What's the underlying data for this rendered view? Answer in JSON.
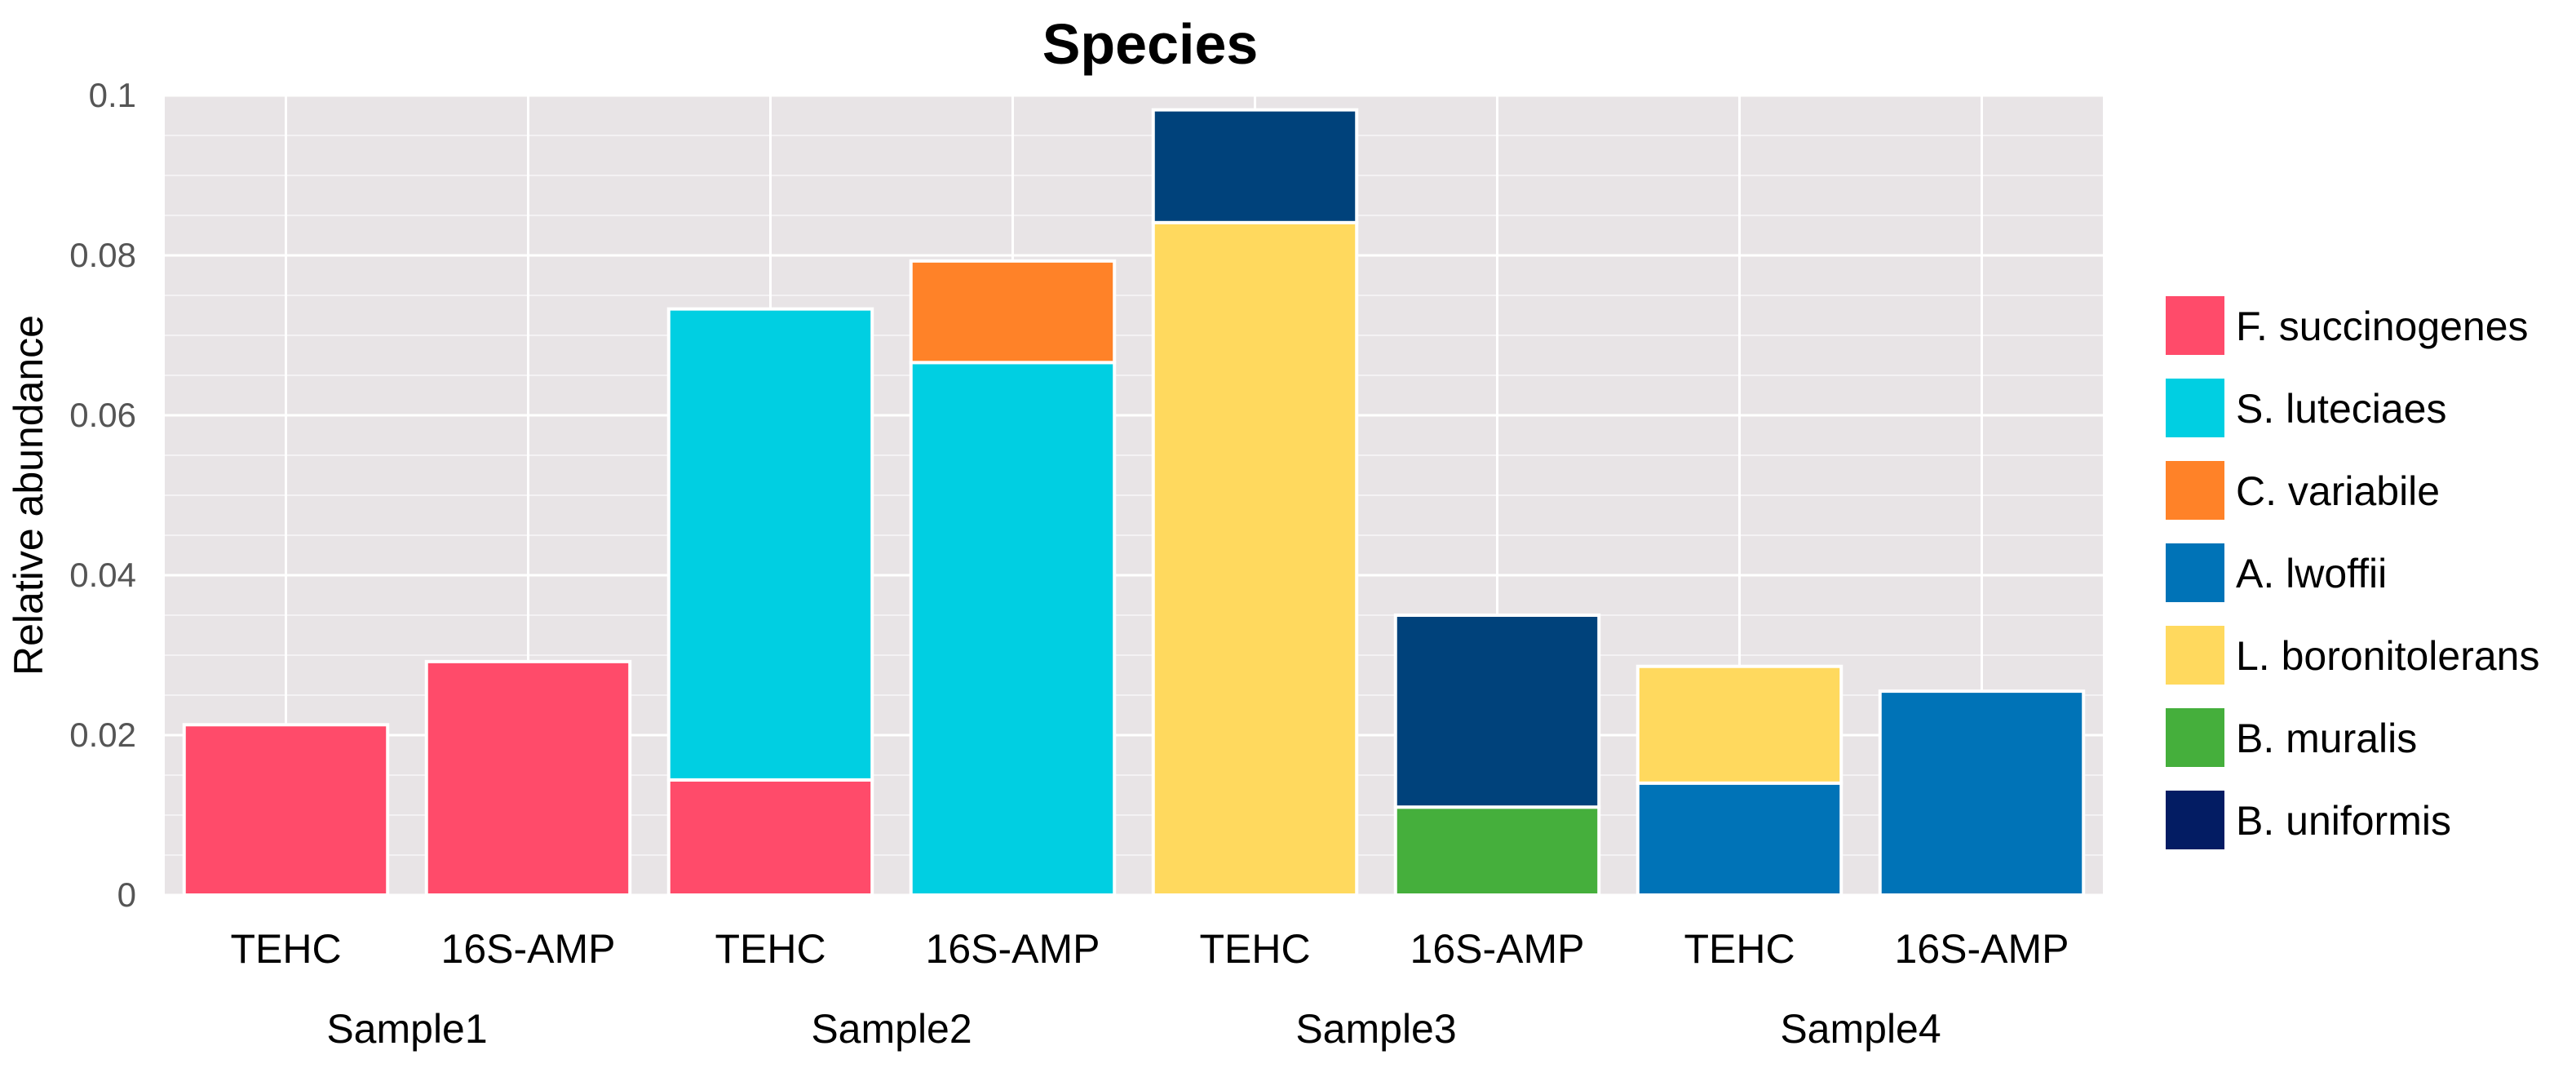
{
  "chart_data": {
    "type": "bar",
    "stacked": true,
    "title": "Species",
    "xlabel": "",
    "ylabel": "Relative abundance",
    "ylim": [
      0,
      0.1
    ],
    "yticks": [
      0,
      0.02,
      0.04,
      0.06,
      0.08,
      0.1
    ],
    "ytick_labels": [
      "0",
      "0.02",
      "0.04",
      "0.06",
      "0.08",
      "0.1"
    ],
    "grid": true,
    "legend_position": "right",
    "categories": [
      "TEHC",
      "16S-AMP",
      "TEHC",
      "16S-AMP",
      "TEHC",
      "16S-AMP",
      "TEHC",
      "16S-AMP"
    ],
    "groups": [
      {
        "label": "Sample1",
        "span": [
          0,
          1
        ]
      },
      {
        "label": "Sample2",
        "span": [
          2,
          3
        ]
      },
      {
        "label": "Sample3",
        "span": [
          4,
          5
        ]
      },
      {
        "label": "Sample4",
        "span": [
          6,
          7
        ]
      }
    ],
    "series": [
      {
        "name": "F. succinogenes",
        "color": "#FF4B6A",
        "values": [
          0.0213,
          0.0292,
          0.0144,
          0,
          0,
          0,
          0,
          0
        ]
      },
      {
        "name": "S. luteciaes",
        "color": "#00CFE2",
        "values": [
          0,
          0,
          0.0589,
          0.0666,
          0,
          0,
          0,
          0
        ]
      },
      {
        "name": "C. variabile",
        "color": "#FF8228",
        "values": [
          0,
          0,
          0,
          0.0127,
          0,
          0,
          0,
          0
        ]
      },
      {
        "name": "A. lwoffii",
        "color": "#0073B7",
        "values": [
          0,
          0,
          0,
          0,
          0,
          0,
          0.014,
          0.0255
        ]
      },
      {
        "name": "L. boronitolerans",
        "color": "#FFD95E",
        "values": [
          0,
          0,
          0,
          0,
          0.0841,
          0,
          0.0146,
          0
        ]
      },
      {
        "name": "B. muralis",
        "color": "#45AF3C",
        "values": [
          0,
          0,
          0,
          0,
          0,
          0.011,
          0,
          0
        ]
      },
      {
        "name": "B. uniformis",
        "color": "#031C63",
        "values": [
          0,
          0,
          0,
          0,
          0,
          0,
          0,
          0
        ]
      },
      {
        "name": "",
        "color": "#00427B",
        "values": [
          0,
          0,
          0,
          0,
          0.0141,
          0.024,
          0,
          0
        ]
      }
    ],
    "colors": {
      "panel_background": "#E8E4E6",
      "grid": "#FFFFFF"
    }
  }
}
